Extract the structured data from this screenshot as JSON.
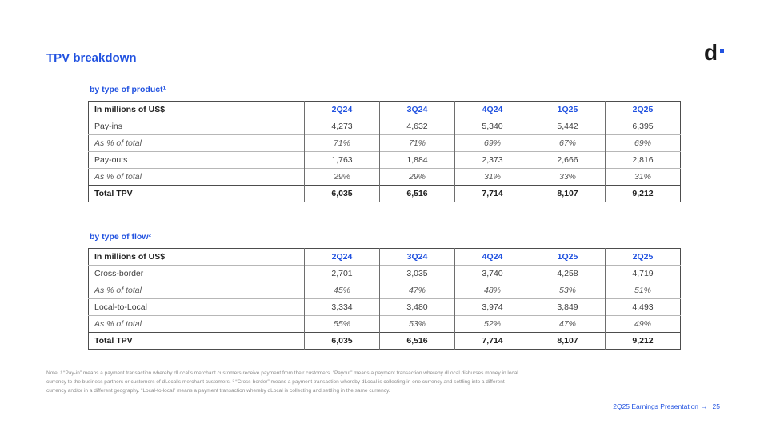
{
  "colors": {
    "accent": "#2152e0",
    "border_dark": "#4d4d4d",
    "border_light": "#b7b7b7"
  },
  "slide": {
    "title": "TPV breakdown",
    "logo_letter": "d"
  },
  "tables": [
    {
      "section_label": "by type of product¹",
      "header": [
        "In millions of US$",
        "2Q24",
        "3Q24",
        "4Q24",
        "1Q25",
        "2Q25"
      ],
      "rows": [
        {
          "label": "Pay-ins",
          "style": "normal",
          "values": [
            "4,273",
            "4,632",
            "5,340",
            "5,442",
            "6,395"
          ]
        },
        {
          "label": "As % of total",
          "style": "italic",
          "values": [
            "71%",
            "71%",
            "69%",
            "67%",
            "69%"
          ]
        },
        {
          "label": "Pay-outs",
          "style": "normal",
          "values": [
            "1,763",
            "1,884",
            "2,373",
            "2,666",
            "2,816"
          ]
        },
        {
          "label": "As % of total",
          "style": "italic",
          "values": [
            "29%",
            "29%",
            "31%",
            "33%",
            "31%"
          ]
        },
        {
          "label": "Total TPV",
          "style": "total",
          "values": [
            "6,035",
            "6,516",
            "7,714",
            "8,107",
            "9,212"
          ]
        }
      ]
    },
    {
      "section_label": "by type of flow²",
      "header": [
        "In millions of US$",
        "2Q24",
        "3Q24",
        "4Q24",
        "1Q25",
        "2Q25"
      ],
      "rows": [
        {
          "label": "Cross-border",
          "style": "normal",
          "values": [
            "2,701",
            "3,035",
            "3,740",
            "4,258",
            "4,719"
          ]
        },
        {
          "label": "As % of total",
          "style": "italic",
          "values": [
            "45%",
            "47%",
            "48%",
            "53%",
            "51%"
          ]
        },
        {
          "label": "Local-to-Local",
          "style": "normal",
          "values": [
            "3,334",
            "3,480",
            "3,974",
            "3,849",
            "4,493"
          ]
        },
        {
          "label": "As % of total",
          "style": "italic",
          "values": [
            "55%",
            "53%",
            "52%",
            "47%",
            "49%"
          ]
        },
        {
          "label": "Total TPV",
          "style": "total",
          "values": [
            "6,035",
            "6,516",
            "7,714",
            "8,107",
            "9,212"
          ]
        }
      ]
    }
  ],
  "note": {
    "lines": [
      "Note: ¹ “Pay-in” means a payment transaction whereby dLocal's merchant customers receive payment from their customers. “Payout” means a payment transaction whereby dLocal disburses money in local",
      "currency to the business partners or customers of dLocal's merchant customers. ² “Cross-border” means a payment transaction whereby dLocal is collecting in one currency and settling into a different",
      "currency and/or in a different geography. “Local-to-local” means a payment transaction whereby dLocal is collecting and settling in the same currency."
    ]
  },
  "footer": {
    "label": "2Q25 Earnings Presentation",
    "arrow": "→",
    "page": "25"
  }
}
